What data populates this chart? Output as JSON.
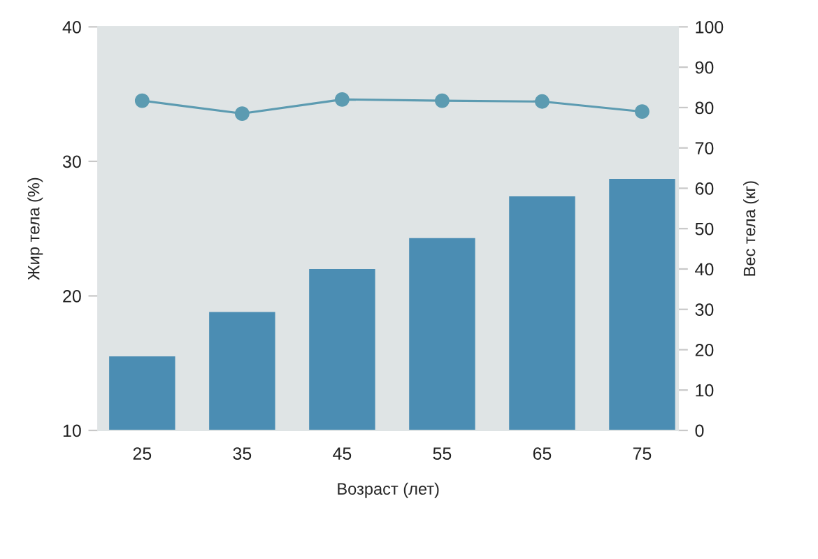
{
  "chart_data": {
    "type": "bar",
    "categories": [
      "25",
      "35",
      "45",
      "55",
      "65",
      "75"
    ],
    "xlabel": "Возраст (лет)",
    "ylabel": "Жир тела (%)",
    "y2label": "Вес тела (кг)",
    "ylim": [
      10,
      40
    ],
    "yticks": [
      10,
      20,
      30,
      40
    ],
    "y2lim": [
      0,
      100
    ],
    "y2ticks": [
      0,
      10,
      20,
      30,
      40,
      50,
      60,
      70,
      80,
      90,
      100
    ],
    "marker": "circle",
    "series": [
      {
        "color": "#4b8db3",
        "values": [
          15.5,
          18.8,
          22.0,
          24.3,
          27.4,
          28.7
        ]
      },
      {
        "type": "line",
        "axis": "y2",
        "color": "#5c9bb1",
        "values": [
          81.7,
          78.5,
          82.0,
          81.7,
          81.5,
          79.0
        ]
      }
    ]
  }
}
